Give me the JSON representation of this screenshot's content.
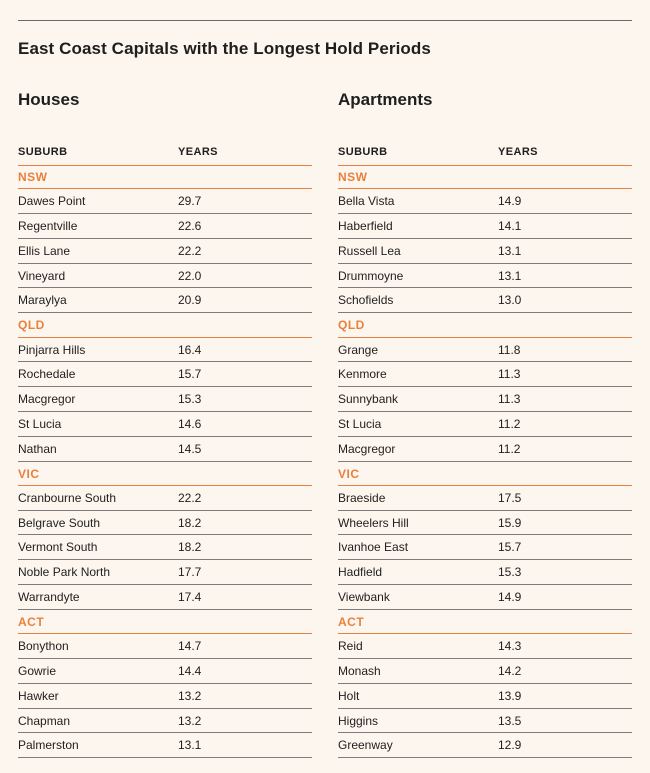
{
  "title": "East Coast Capitals with the Longest Hold Periods",
  "colors": {
    "accent": "#e8813e",
    "background": "#fdf6ef",
    "text": "#1e1e1e"
  },
  "houses": {
    "heading": "Houses",
    "col_suburb": "SUBURB",
    "col_years": "YEARS",
    "rows": [
      {
        "type": "state",
        "suburb": "NSW",
        "years": ""
      },
      {
        "type": "row",
        "suburb": "Dawes Point",
        "years": "29.7"
      },
      {
        "type": "row",
        "suburb": "Regentville",
        "years": "22.6"
      },
      {
        "type": "row",
        "suburb": "Ellis Lane",
        "years": "22.2"
      },
      {
        "type": "row",
        "suburb": "Vineyard",
        "years": "22.0"
      },
      {
        "type": "row",
        "suburb": "Maraylya",
        "years": "20.9"
      },
      {
        "type": "state",
        "suburb": "QLD",
        "years": ""
      },
      {
        "type": "row",
        "suburb": "Pinjarra Hills",
        "years": "16.4"
      },
      {
        "type": "row",
        "suburb": "Rochedale",
        "years": "15.7"
      },
      {
        "type": "row",
        "suburb": "Macgregor",
        "years": "15.3"
      },
      {
        "type": "row",
        "suburb": "St Lucia",
        "years": "14.6"
      },
      {
        "type": "row",
        "suburb": "Nathan",
        "years": "14.5"
      },
      {
        "type": "state",
        "suburb": "VIC",
        "years": ""
      },
      {
        "type": "row",
        "suburb": "Cranbourne South",
        "years": "22.2"
      },
      {
        "type": "row",
        "suburb": "Belgrave South",
        "years": "18.2"
      },
      {
        "type": "row",
        "suburb": "Vermont South",
        "years": "18.2"
      },
      {
        "type": "row",
        "suburb": "Noble Park North",
        "years": "17.7"
      },
      {
        "type": "row",
        "suburb": "Warrandyte",
        "years": "17.4"
      },
      {
        "type": "state",
        "suburb": "ACT",
        "years": ""
      },
      {
        "type": "row",
        "suburb": "Bonython",
        "years": "14.7"
      },
      {
        "type": "row",
        "suburb": "Gowrie",
        "years": "14.4"
      },
      {
        "type": "row",
        "suburb": "Hawker",
        "years": "13.2"
      },
      {
        "type": "row",
        "suburb": "Chapman",
        "years": "13.2"
      },
      {
        "type": "row",
        "suburb": "Palmerston",
        "years": "13.1"
      }
    ]
  },
  "apartments": {
    "heading": "Apartments",
    "col_suburb": "SUBURB",
    "col_years": "YEARS",
    "rows": [
      {
        "type": "state",
        "suburb": "NSW",
        "years": ""
      },
      {
        "type": "row",
        "suburb": "Bella Vista",
        "years": "14.9"
      },
      {
        "type": "row",
        "suburb": "Haberfield",
        "years": "14.1"
      },
      {
        "type": "row",
        "suburb": "Russell Lea",
        "years": "13.1"
      },
      {
        "type": "row",
        "suburb": "Drummoyne",
        "years": "13.1"
      },
      {
        "type": "row",
        "suburb": "Schofields",
        "years": "13.0"
      },
      {
        "type": "state",
        "suburb": "QLD",
        "years": ""
      },
      {
        "type": "row",
        "suburb": "Grange",
        "years": "11.8"
      },
      {
        "type": "row",
        "suburb": "Kenmore",
        "years": "11.3"
      },
      {
        "type": "row",
        "suburb": "Sunnybank",
        "years": "11.3"
      },
      {
        "type": "row",
        "suburb": "St Lucia",
        "years": "11.2"
      },
      {
        "type": "row",
        "suburb": "Macgregor",
        "years": "11.2"
      },
      {
        "type": "state",
        "suburb": "VIC",
        "years": ""
      },
      {
        "type": "row",
        "suburb": "Braeside",
        "years": "17.5"
      },
      {
        "type": "row",
        "suburb": "Wheelers Hill",
        "years": "15.9"
      },
      {
        "type": "row",
        "suburb": "Ivanhoe East",
        "years": "15.7"
      },
      {
        "type": "row",
        "suburb": "Hadfield",
        "years": "15.3"
      },
      {
        "type": "row",
        "suburb": "Viewbank",
        "years": "14.9"
      },
      {
        "type": "state",
        "suburb": "ACT",
        "years": ""
      },
      {
        "type": "row",
        "suburb": "Reid",
        "years": "14.3"
      },
      {
        "type": "row",
        "suburb": "Monash",
        "years": "14.2"
      },
      {
        "type": "row",
        "suburb": "Holt",
        "years": "13.9"
      },
      {
        "type": "row",
        "suburb": "Higgins",
        "years": "13.5"
      },
      {
        "type": "row",
        "suburb": "Greenway",
        "years": "12.9"
      }
    ]
  }
}
